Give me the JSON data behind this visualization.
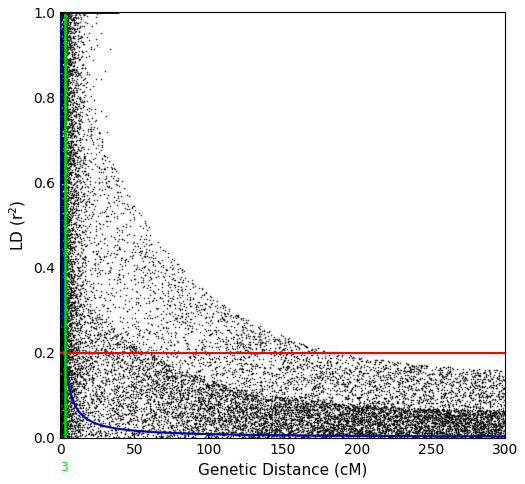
{
  "title": "",
  "xlabel": "Genetic Distance (cM)",
  "ylabel": "LD (r²)",
  "xlim": [
    0,
    300
  ],
  "ylim": [
    0,
    1.0
  ],
  "xticks": [
    0,
    50,
    100,
    150,
    200,
    250,
    300
  ],
  "yticks": [
    0.0,
    0.2,
    0.4,
    0.6,
    0.8,
    1.0
  ],
  "red_line_y": 0.2,
  "green_vline_x": 3,
  "green_label": "3",
  "black_hline_y": 1.0,
  "black_hline_xstart": 0,
  "black_hline_xend": 40,
  "dot_color": "#000000",
  "dot_size": 1.5,
  "dot_alpha": 0.7,
  "curve_color": "#0000bb",
  "red_color": "#ff0000",
  "green_color": "#00dd00",
  "background_color": "#ffffff",
  "n_points_uniform": 12000,
  "n_points_near0": 6000,
  "seed": 42,
  "curve_C": 1.2,
  "figsize": [
    5.25,
    4.84
  ],
  "dpi": 100
}
